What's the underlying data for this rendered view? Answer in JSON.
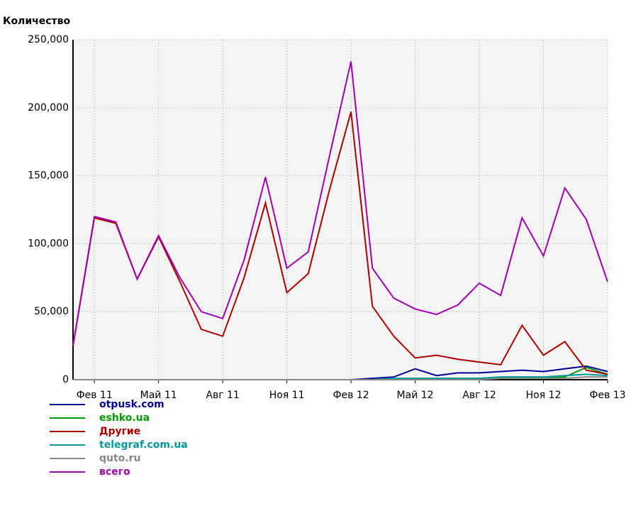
{
  "chart_data": {
    "type": "line",
    "y_axis_title": "Количество",
    "categories": [
      null,
      "Фев 11",
      null,
      null,
      "Май 11",
      null,
      null,
      "Авг 11",
      null,
      null,
      "Ноя 11",
      null,
      null,
      "Фев 12",
      null,
      null,
      "Май 12",
      null,
      null,
      "Авг 12",
      null,
      null,
      "Ноя 12",
      null,
      null,
      "Фев 13"
    ],
    "series": [
      {
        "name": "otpusk.com",
        "color": "#000099",
        "values": [
          0,
          0,
          0,
          0,
          0,
          0,
          0,
          0,
          0,
          0,
          0,
          0,
          0,
          0,
          1000,
          2000,
          8000,
          3000,
          5000,
          5000,
          6000,
          7000,
          6000,
          8000,
          10000,
          6000
        ]
      },
      {
        "name": "eshko.ua",
        "color": "#009900",
        "values": [
          0,
          0,
          0,
          0,
          0,
          0,
          0,
          0,
          0,
          0,
          0,
          0,
          0,
          0,
          0,
          0,
          1000,
          1000,
          1000,
          1000,
          1000,
          1000,
          1000,
          2000,
          9000,
          4000
        ]
      },
      {
        "name": "Другие",
        "color": "#aa0000",
        "values": [
          25000,
          119000,
          115000,
          74000,
          105000,
          72000,
          37000,
          32000,
          75000,
          130000,
          64000,
          78000,
          140000,
          197000,
          54000,
          32000,
          16000,
          18000,
          15000,
          13000,
          11000,
          40000,
          18000,
          28000,
          7000,
          4000
        ]
      },
      {
        "name": "telegraf.com.ua",
        "color": "#009999",
        "values": [
          0,
          0,
          0,
          0,
          0,
          0,
          0,
          0,
          0,
          0,
          0,
          0,
          0,
          0,
          0,
          1000,
          1000,
          1000,
          1000,
          1000,
          2000,
          2000,
          2000,
          3000,
          4000,
          3000
        ]
      },
      {
        "name": "quto.ru",
        "color": "#888888",
        "values": [
          0,
          0,
          0,
          0,
          0,
          0,
          0,
          0,
          0,
          0,
          0,
          0,
          0,
          0,
          0,
          0,
          0,
          0,
          0,
          0,
          1000,
          1000,
          1000,
          1000,
          2000,
          2000
        ]
      },
      {
        "name": "всего",
        "color": "#a000b0",
        "values": [
          25000,
          120000,
          116000,
          74000,
          106000,
          75000,
          50000,
          45000,
          88000,
          149000,
          82000,
          94000,
          165000,
          234000,
          82000,
          60000,
          52000,
          48000,
          55000,
          71000,
          62000,
          119000,
          91000,
          141000,
          118000,
          72000
        ]
      }
    ],
    "ylim": [
      0,
      250000
    ],
    "yticks": [
      {
        "value": 0,
        "label": "0"
      },
      {
        "value": 50000,
        "label": "50,000"
      },
      {
        "value": 100000,
        "label": "100,000"
      },
      {
        "value": 150000,
        "label": "150,000"
      },
      {
        "value": 200000,
        "label": "200,000"
      },
      {
        "value": 250000,
        "label": "250,000"
      }
    ],
    "grid": true
  }
}
